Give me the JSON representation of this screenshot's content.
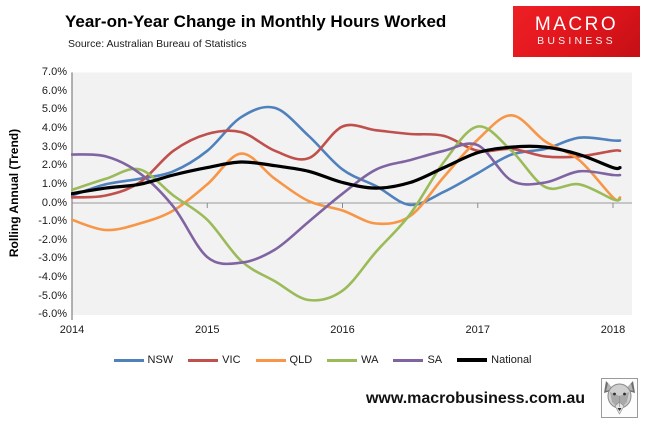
{
  "header": {
    "title": "Year-on-Year Change in Monthly Hours Worked",
    "source": "Source: Australian Bureau of Statistics",
    "logo_line1": "MACRO",
    "logo_line2": "BUSINESS",
    "logo_bg": "#df151b"
  },
  "footer": {
    "website": "www.macrobusiness.com.au"
  },
  "chart_data": {
    "type": "line",
    "title": "Year-on-Year Change in Monthly Hours Worked",
    "xlabel": "",
    "ylabel": "Rolling Annual (Trend)",
    "ylim": [
      -6.0,
      7.0
    ],
    "xlim": [
      2014,
      2018
    ],
    "ytick_labels": [
      "7.0%",
      "6.0%",
      "5.0%",
      "4.0%",
      "3.0%",
      "2.0%",
      "1.0%",
      "0.0%",
      "-1.0%",
      "-2.0%",
      "-3.0%",
      "-4.0%",
      "-5.0%",
      "-6.0%"
    ],
    "xtick_labels": [
      "2014",
      "2015",
      "2016",
      "2017",
      "2018"
    ],
    "grid": "zero-line-only",
    "legend_position": "bottom",
    "plot_bg": "#f2f2f2",
    "axis_color": "#8c8c8c",
    "x": [
      2014.0,
      2014.25,
      2014.5,
      2014.75,
      2015.0,
      2015.25,
      2015.5,
      2015.75,
      2016.0,
      2016.25,
      2016.5,
      2016.75,
      2017.0,
      2017.25,
      2017.5,
      2017.75,
      2018.0
    ],
    "series": [
      {
        "name": "NSW",
        "color": "#4F81BD",
        "values": [
          0.4,
          1.0,
          1.3,
          1.7,
          2.8,
          4.6,
          5.1,
          3.6,
          1.8,
          0.9,
          -0.1,
          0.6,
          1.6,
          2.6,
          2.9,
          3.5,
          3.35
        ]
      },
      {
        "name": "VIC",
        "color": "#C0504D",
        "values": [
          0.3,
          0.4,
          1.1,
          2.8,
          3.7,
          3.8,
          2.8,
          2.4,
          4.1,
          3.9,
          3.7,
          3.6,
          2.8,
          2.9,
          2.5,
          2.5,
          2.8
        ]
      },
      {
        "name": "QLD",
        "color": "#F79646",
        "values": [
          -0.9,
          -1.45,
          -1.1,
          -0.4,
          1.0,
          2.65,
          1.3,
          0.1,
          -0.4,
          -1.1,
          -0.7,
          1.4,
          3.4,
          4.7,
          3.3,
          2.3,
          0.3
        ]
      },
      {
        "name": "WA",
        "color": "#9BBB59",
        "values": [
          0.7,
          1.3,
          1.8,
          0.4,
          -0.9,
          -3.1,
          -4.2,
          -5.2,
          -4.7,
          -2.6,
          -0.6,
          2.2,
          4.1,
          2.8,
          0.85,
          1.0,
          0.2
        ]
      },
      {
        "name": "SA",
        "color": "#8064A2",
        "values": [
          2.6,
          2.5,
          1.6,
          -0.2,
          -2.9,
          -3.2,
          -2.5,
          -1.0,
          0.5,
          1.8,
          2.3,
          2.8,
          3.1,
          1.2,
          1.1,
          1.7,
          1.5
        ]
      },
      {
        "name": "National",
        "color": "#000000",
        "values": [
          0.5,
          0.8,
          1.0,
          1.5,
          1.9,
          2.2,
          2.0,
          1.7,
          1.1,
          0.8,
          1.1,
          1.9,
          2.7,
          3.0,
          3.0,
          2.6,
          1.9
        ]
      }
    ]
  }
}
